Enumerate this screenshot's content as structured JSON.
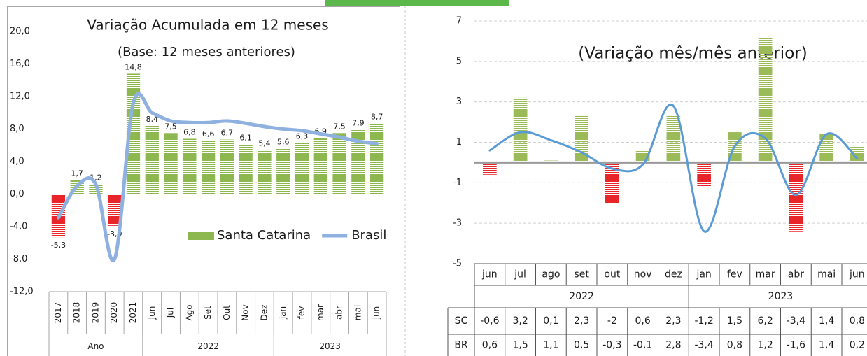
{
  "chart_data": [
    {
      "type": "combo",
      "title": "Variação Acumulada em 12 meses",
      "subtitle": "(Base: 12 meses anteriores)",
      "categories": [
        "2017",
        "2018",
        "2019",
        "2020",
        "2021",
        "Jun",
        "Jul",
        "Ago",
        "Set",
        "Out",
        "Nov",
        "Dez",
        "jan",
        "fev",
        "mar",
        "abr",
        "mai",
        "jun"
      ],
      "groups": [
        {
          "label": "Ano",
          "span": 5
        },
        {
          "label": "2022",
          "span": 7
        },
        {
          "label": "2023",
          "span": 6
        }
      ],
      "series": [
        {
          "name": "Santa Catarina",
          "type": "bar",
          "color": "#8cb84f",
          "negative_color": "#e8262a",
          "values": [
            -5.3,
            1.7,
            1.2,
            -3.9,
            14.8,
            8.4,
            7.5,
            6.8,
            6.6,
            6.7,
            6.1,
            5.4,
            5.6,
            6.3,
            6.9,
            7.5,
            7.9,
            8.7
          ],
          "value_labels": [
            "-5,3",
            "1,7",
            "1,2",
            "-3,9",
            "14,8",
            "8,4",
            "7,5",
            "6,8",
            "6,6",
            "6,7",
            "6,1",
            "5,4",
            "5,6",
            "6,3",
            "6,9",
            "7,5",
            "7,9",
            "8,7"
          ]
        },
        {
          "name": "Brasil",
          "type": "line",
          "color": "#8fb1e0",
          "values": [
            -2.9,
            1.0,
            1.2,
            -8.0,
            11.2,
            10.0,
            9.0,
            8.8,
            8.8,
            9.0,
            8.7,
            8.3,
            8.0,
            7.8,
            7.4,
            7.0,
            6.5,
            6.2
          ]
        }
      ],
      "ylim": [
        -12,
        20
      ],
      "yticks": [
        {
          "value": 20,
          "label": "20,0"
        },
        {
          "value": 16,
          "label": "16,0"
        },
        {
          "value": 12,
          "label": "12,0"
        },
        {
          "value": 8,
          "label": "8,0"
        },
        {
          "value": 4,
          "label": "4,0"
        },
        {
          "value": 0,
          "label": "0,0"
        },
        {
          "value": -4,
          "label": "-4,0"
        },
        {
          "value": -8,
          "label": "-8,0"
        },
        {
          "value": -12,
          "label": "-12,0"
        }
      ],
      "grid": false,
      "legend": "lower right",
      "table": false
    },
    {
      "type": "combo",
      "title": "(Variação mês/mês anterior)",
      "categories": [
        "jun",
        "jul",
        "ago",
        "set",
        "out",
        "nov",
        "dez",
        "jan",
        "fev",
        "mar",
        "abr",
        "mai",
        "jun"
      ],
      "groups": [
        {
          "label": "2022",
          "span": 7
        },
        {
          "label": "2023",
          "span": 6
        }
      ],
      "series": [
        {
          "name": "SC",
          "type": "bar",
          "color": "#9bbb59",
          "negative_color": "#e8262a",
          "values": [
            -0.6,
            3.2,
            0.1,
            2.3,
            -2,
            0.6,
            2.3,
            -1.2,
            1.5,
            6.2,
            -3.4,
            1.4,
            0.8
          ],
          "value_labels": [
            "-0,6",
            "3,2",
            "0,1",
            "2,3",
            "-2",
            "0,6",
            "2,3",
            "-1,2",
            "1,5",
            "6,2",
            "-3,4",
            "1,4",
            "0,8"
          ]
        },
        {
          "name": "BR",
          "type": "line",
          "color": "#5b9bd5",
          "values": [
            0.6,
            1.5,
            1.1,
            0.5,
            -0.3,
            -0.1,
            2.8,
            -3.4,
            0.8,
            1.2,
            -1.6,
            1.4,
            0.2
          ],
          "value_labels": [
            "0,6",
            "1,5",
            "1,1",
            "0,5",
            "-0,3",
            "-0,1",
            "2,8",
            "-3,4",
            "0,8",
            "1,2",
            "-1,6",
            "1,4",
            "0,2"
          ]
        }
      ],
      "ylim": [
        -5,
        7
      ],
      "yticks": [
        7,
        5,
        3,
        1,
        -1,
        -3,
        -5
      ],
      "grid": true,
      "table": true
    }
  ]
}
